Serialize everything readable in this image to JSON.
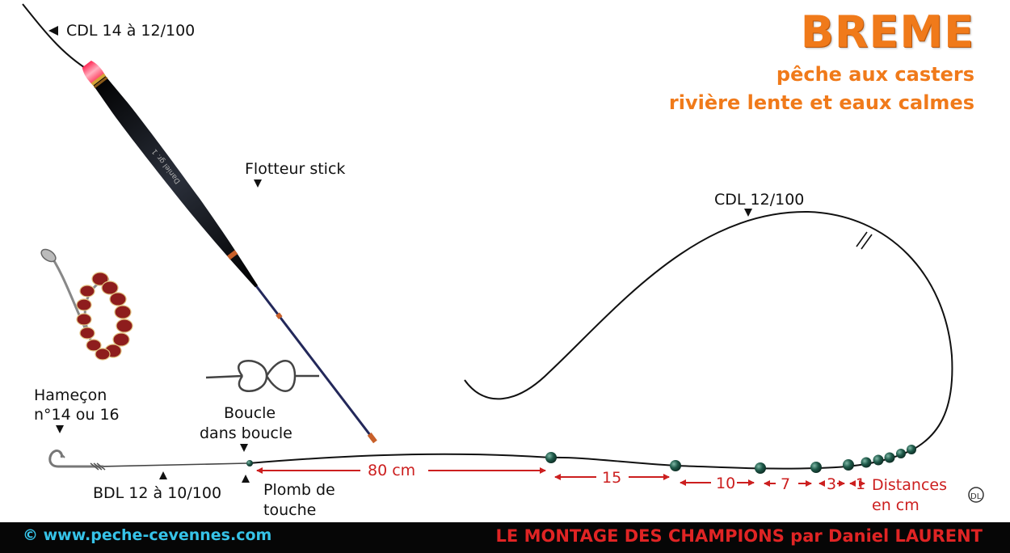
{
  "title": {
    "main": "BREME",
    "line1": "pêche aux casters",
    "line2": "rivière lente et eaux calmes"
  },
  "labels": {
    "cdl_main": "CDL 14 à 12/100",
    "float": "Flotteur stick",
    "cdl_loop": "CDL 12/100",
    "hook_line1": "Hameçon",
    "hook_line2": "n°14 ou 16",
    "loop_line1": "Boucle",
    "loop_line2": "dans boucle",
    "bdl": "BDL 12 à 10/100",
    "plomb_line1": "Plomb de",
    "plomb_line2": "touche",
    "distances_line1": "Distances",
    "distances_line2": "en cm"
  },
  "distances": [
    "80 cm",
    "15",
    "10",
    "7",
    "3",
    "1"
  ],
  "float_brand": "Daniel gr. 1",
  "signature": "DL",
  "footer": {
    "left": "© www.peche-cevennes.com",
    "right": "LE MONTAGE DES CHAMPIONS par Daniel LAURENT"
  },
  "colors": {
    "title": "#f07a1a",
    "footer_bg": "#060606",
    "footer_left": "#36c3e8",
    "footer_right": "#e02424",
    "distance_red": "#cc1f1f",
    "shot_green": "#1f5a4a"
  }
}
